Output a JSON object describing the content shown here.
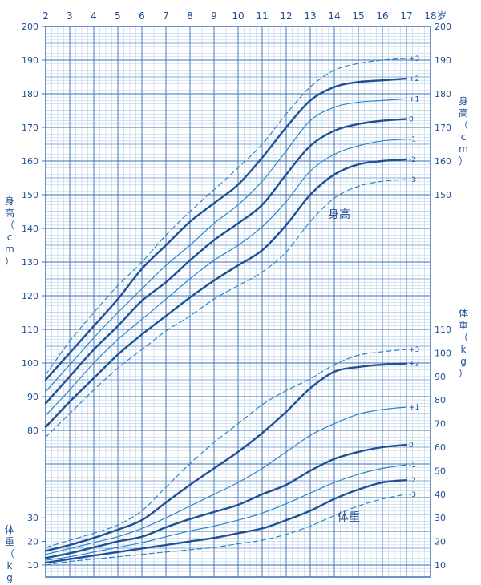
{
  "chart_data": {
    "type": "line",
    "x_ticks": [
      "2",
      "3",
      "4",
      "5",
      "6",
      "7",
      "8",
      "9",
      "10",
      "11",
      "12",
      "13",
      "14",
      "15",
      "16",
      "17",
      "18"
    ],
    "x_unit": "岁",
    "x_range": [
      2,
      18
    ],
    "height_axis": {
      "left_label": "身高（cm）",
      "right_label": "身高（cm）",
      "left_ticks": [
        80,
        90,
        100,
        110,
        120,
        130,
        140,
        150,
        160,
        170,
        180,
        190,
        200
      ],
      "right_ticks": [
        150,
        160,
        170,
        180,
        190,
        200
      ],
      "range": [
        73,
        200
      ]
    },
    "weight_axis": {
      "left_label": "体重（kg）",
      "right_label": "体重（kg）",
      "left_ticks": [
        10,
        20,
        30
      ],
      "right_ticks": [
        10,
        20,
        30,
        40,
        50,
        60,
        70,
        80,
        90,
        100,
        110
      ],
      "range": [
        8,
        110
      ]
    },
    "height_group_label": "身高",
    "weight_group_label": "体重",
    "height_series": [
      {
        "name": "+3",
        "style": "dashed",
        "x": [
          2,
          3,
          4,
          5,
          6,
          7,
          8,
          9,
          10,
          11,
          12,
          13,
          14,
          15,
          16,
          17
        ],
        "values": [
          96.5,
          106.5,
          115,
          123,
          130,
          138,
          145,
          151.5,
          158,
          165,
          174,
          182,
          187,
          189,
          190,
          190.5
        ]
      },
      {
        "name": "+2",
        "style": "bold",
        "x": [
          2,
          3,
          4,
          5,
          6,
          7,
          8,
          9,
          10,
          11,
          12,
          13,
          14,
          15,
          16,
          17
        ],
        "values": [
          95,
          103,
          111,
          119,
          128,
          135,
          142,
          147.5,
          153,
          161,
          170,
          178,
          182,
          183.5,
          184,
          184.5
        ]
      },
      {
        "name": "+1",
        "style": "thin",
        "x": [
          2,
          3,
          4,
          5,
          6,
          7,
          8,
          9,
          10,
          11,
          12,
          13,
          14,
          15,
          16,
          17
        ],
        "values": [
          91.5,
          99.5,
          107.5,
          115,
          122,
          129,
          135,
          141.5,
          147,
          154,
          163,
          172,
          176,
          177.5,
          178,
          178.5
        ]
      },
      {
        "name": "0",
        "style": "bold",
        "x": [
          2,
          3,
          4,
          5,
          6,
          7,
          8,
          9,
          10,
          11,
          12,
          13,
          14,
          15,
          16,
          17
        ],
        "values": [
          88,
          96,
          104,
          111,
          118.5,
          124,
          130.5,
          136.5,
          141.5,
          147,
          156,
          164.5,
          169,
          171,
          172,
          172.5
        ]
      },
      {
        "name": "-1",
        "style": "thin",
        "x": [
          2,
          3,
          4,
          5,
          6,
          7,
          8,
          9,
          10,
          11,
          12,
          13,
          14,
          15,
          16,
          17
        ],
        "values": [
          84.5,
          92,
          100,
          107,
          113,
          119,
          125,
          130.5,
          135,
          140.5,
          148,
          157,
          162,
          164.5,
          166,
          166.5
        ]
      },
      {
        "name": "-2",
        "style": "bold",
        "x": [
          2,
          3,
          4,
          5,
          6,
          7,
          8,
          9,
          10,
          11,
          12,
          13,
          14,
          15,
          16,
          17
        ],
        "values": [
          81,
          88.5,
          95.5,
          102.5,
          108.5,
          114,
          119.5,
          124.5,
          129,
          133.5,
          141,
          150,
          156,
          159,
          160,
          160.5
        ]
      },
      {
        "name": "-3",
        "style": "dashed",
        "x": [
          2,
          3,
          4,
          5,
          6,
          7,
          8,
          9,
          10,
          11,
          12,
          13,
          14,
          15,
          16,
          17
        ],
        "values": [
          78,
          85,
          92,
          98.5,
          104,
          109.5,
          114,
          119,
          123,
          127,
          133,
          142,
          149,
          152.5,
          154,
          154.5
        ]
      }
    ],
    "weight_series": [
      {
        "name": "+3",
        "style": "dashed",
        "x": [
          2,
          3,
          4,
          5,
          6,
          7,
          8,
          9,
          10,
          11,
          12,
          13,
          14,
          15,
          16,
          17
        ],
        "values": [
          17.5,
          20.5,
          23.5,
          27,
          33,
          43,
          53,
          62,
          70,
          78,
          84,
          89,
          95,
          99,
          100.5,
          101.5
        ]
      },
      {
        "name": "+2",
        "style": "bold",
        "x": [
          2,
          3,
          4,
          5,
          6,
          7,
          8,
          9,
          10,
          11,
          12,
          13,
          14,
          15,
          16,
          17
        ],
        "values": [
          16,
          18.5,
          21.5,
          25,
          29,
          36.5,
          44,
          51,
          58,
          66,
          75,
          85,
          92,
          94,
          95,
          95.5
        ]
      },
      {
        "name": "+1",
        "style": "thin",
        "x": [
          2,
          3,
          4,
          5,
          6,
          7,
          8,
          9,
          10,
          11,
          12,
          13,
          14,
          15,
          16,
          17
        ],
        "values": [
          14.5,
          17,
          19.5,
          22,
          25.5,
          30,
          35,
          40,
          45,
          51,
          58,
          65,
          70,
          74,
          76,
          77
        ]
      },
      {
        "name": "0",
        "style": "bold",
        "x": [
          2,
          3,
          4,
          5,
          6,
          7,
          8,
          9,
          10,
          11,
          12,
          13,
          14,
          15,
          16,
          17
        ],
        "values": [
          13,
          15,
          17.5,
          20,
          22,
          26,
          29.5,
          32.5,
          35.5,
          40,
          44,
          50,
          55,
          58,
          60,
          61
        ]
      },
      {
        "name": "-1",
        "style": "thin",
        "x": [
          2,
          3,
          4,
          5,
          6,
          7,
          8,
          9,
          10,
          11,
          12,
          13,
          14,
          15,
          16,
          17
        ],
        "values": [
          12,
          13.5,
          15.5,
          17.5,
          19.5,
          22,
          24.5,
          26.5,
          29,
          32,
          36,
          40.5,
          45,
          48.5,
          51,
          52.5
        ]
      },
      {
        "name": "-2",
        "style": "bold",
        "x": [
          2,
          3,
          4,
          5,
          6,
          7,
          8,
          9,
          10,
          11,
          12,
          13,
          14,
          15,
          16,
          17
        ],
        "values": [
          11,
          12.5,
          14,
          15.5,
          17,
          18.5,
          20,
          21.5,
          23.5,
          25.5,
          29,
          33,
          38,
          42,
          45,
          46
        ]
      },
      {
        "name": "-3",
        "style": "dashed",
        "x": [
          2,
          3,
          4,
          5,
          6,
          7,
          8,
          9,
          10,
          11,
          12,
          13,
          14,
          15,
          16,
          17
        ],
        "values": [
          10,
          11.5,
          12.5,
          13.5,
          14.5,
          15.5,
          16.5,
          17.5,
          19,
          20.5,
          23,
          26.5,
          31,
          35,
          38,
          40
        ]
      }
    ],
    "colors": {
      "grid_light": "#bcd3ea",
      "grid_dark": "#3d6fb3",
      "line_bold": "#1f4f94",
      "line_thin": "#2a86c8",
      "text": "#1f4f94",
      "background": "#ffffff"
    }
  }
}
